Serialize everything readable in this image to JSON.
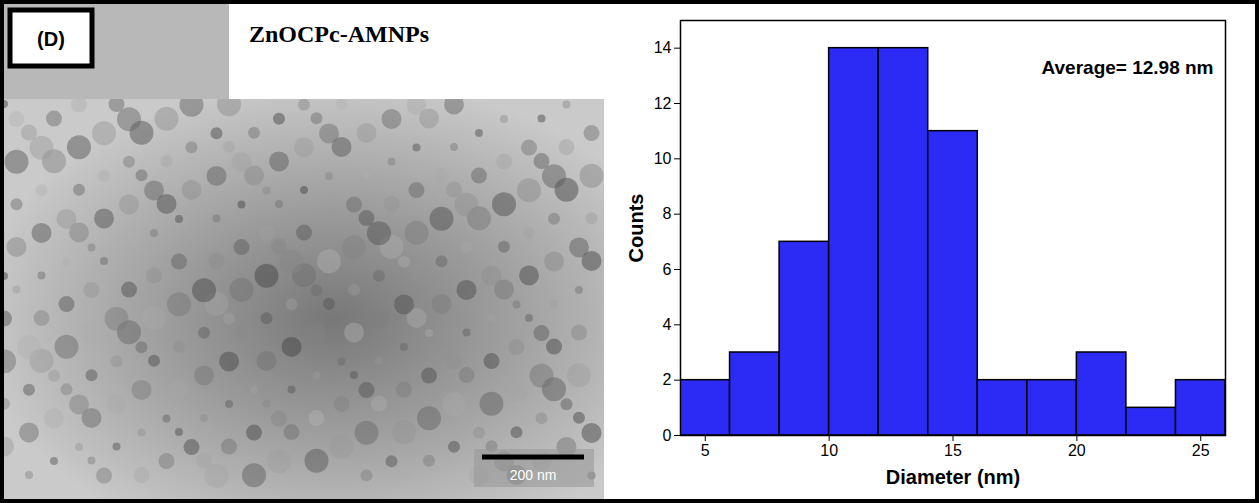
{
  "panel": {
    "label": "(D)",
    "title": "ZnOCPc-AMNPs",
    "scale_bar": "200 nm"
  },
  "chart_data": {
    "type": "histogram",
    "bins": [
      4,
      6,
      8,
      10,
      12,
      14,
      16,
      18,
      20,
      22,
      24,
      26
    ],
    "values": [
      2,
      3,
      7,
      14,
      14,
      11,
      2,
      2,
      3,
      1,
      2
    ],
    "color": "#2b2bf5",
    "xlabel": "Diameter (nm)",
    "ylabel": "Counts",
    "xlim": [
      4,
      26
    ],
    "xticks": [
      5,
      10,
      15,
      20,
      25
    ],
    "ylim": [
      0,
      15
    ],
    "yticks": [
      0,
      2,
      4,
      6,
      8,
      10,
      12,
      14
    ],
    "annotations": [
      "Average= 12.98 nm"
    ]
  }
}
